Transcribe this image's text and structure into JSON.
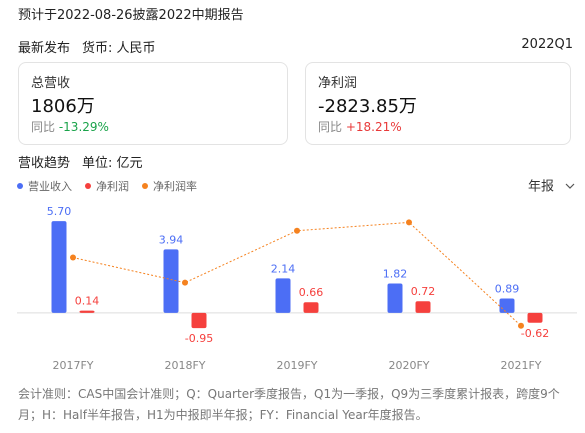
{
  "header": {
    "notice": "预计于2022-08-26披露2022中期报告",
    "release": "最新发布",
    "currency": "货币: 人民币",
    "period": "2022Q1"
  },
  "cards": [
    {
      "label": "总营收",
      "value": "1806万",
      "change_label": "同比",
      "change": "-13.29%"
    },
    {
      "label": "净利润",
      "value": "-2823.85万",
      "change_label": "同比",
      "change": "+18.21%"
    }
  ],
  "trend": {
    "title": "营收趋势",
    "unit": "单位: 亿元",
    "period_selector": "年报"
  },
  "chart_data": {
    "type": "bar",
    "categories": [
      "2017FY",
      "2018FY",
      "2019FY",
      "2020FY",
      "2021FY"
    ],
    "series": [
      {
        "name": "营业收入",
        "color": "#4c6ef5",
        "values": [
          5.7,
          3.94,
          2.14,
          1.82,
          0.89
        ],
        "value_labels": [
          "5.70",
          "3.94",
          "2.14",
          "1.82",
          "0.89"
        ]
      },
      {
        "name": "净利润",
        "color": "#f5403d",
        "values": [
          0.14,
          -0.95,
          0.66,
          0.72,
          -0.62
        ]
      },
      {
        "name": "净利润率",
        "color": "#f5821f",
        "type": "line",
        "axis": "y2",
        "values": [
          2.46,
          -24.1,
          30.8,
          39.6,
          -69.7
        ]
      }
    ],
    "ylim": [
      -2,
      6.7
    ],
    "y2lim": [
      -90,
      58
    ]
  },
  "footnote": "会计准则：CAS中国会计准则；Q：Quarter季度报告，Q1为一季报，Q9为三季度累计报表，跨度9个月；H：Half半年报告，H1为中报即半年报；FY：Financial Year年度报告。"
}
